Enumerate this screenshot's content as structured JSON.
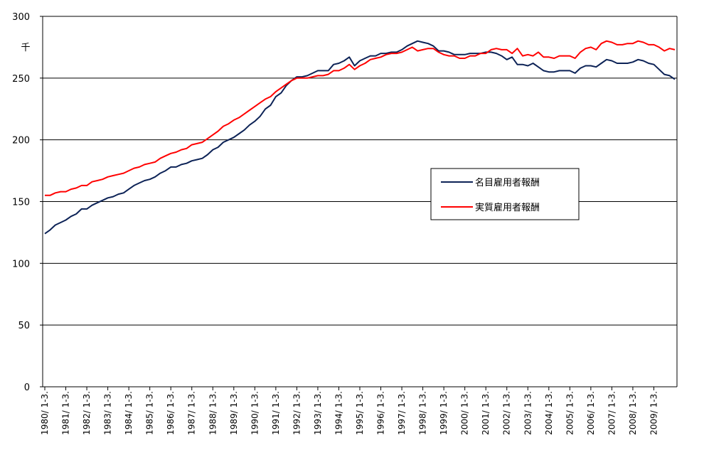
{
  "chart_data": {
    "type": "line",
    "unit_label": "千",
    "ylim": [
      0,
      300
    ],
    "yticks": [
      0,
      50,
      100,
      150,
      200,
      250,
      300
    ],
    "grid": true,
    "legend_position": "center-right",
    "x_tick_labels": [
      "1980/ 1-3.",
      "1981/ 1-3.",
      "1982/ 1-3.",
      "1983/ 1-3.",
      "1984/ 1-3.",
      "1985/ 1-3.",
      "1986/ 1-3.",
      "1987/ 1-3.",
      "1988/ 1-3.",
      "1989/ 1-3.",
      "1990/ 1-3.",
      "1991/ 1-3.",
      "1992/ 1-3.",
      "1993/ 1-3.",
      "1994/ 1-3.",
      "1995/ 1-3.",
      "1996/ 1-3.",
      "1997/ 1-3.",
      "1998/ 1-3.",
      "1999/ 1-3.",
      "2000/ 1-3.",
      "2001/ 1-3.",
      "2002/ 1-3.",
      "2003/ 1-3.",
      "2004/ 1-3.",
      "2005/ 1-3.",
      "2006/ 1-3.",
      "2007/ 1-3.",
      "2008/ 1-3.",
      "2009/ 1-3."
    ],
    "quarters_per_year": 4,
    "series": [
      {
        "name": "名目雇用者報酬",
        "color": "#0c2256",
        "values": [
          124,
          127,
          131,
          133,
          135,
          138,
          140,
          144,
          144,
          147,
          149,
          151,
          153,
          154,
          156,
          157,
          160,
          163,
          165,
          167,
          168,
          170,
          173,
          175,
          178,
          178,
          180,
          181,
          183,
          184,
          185,
          188,
          192,
          194,
          198,
          200,
          202,
          205,
          208,
          212,
          215,
          219,
          225,
          228,
          235,
          238,
          244,
          248,
          251,
          251,
          252,
          254,
          256,
          256,
          256,
          261,
          262,
          264,
          267,
          260,
          264,
          266,
          268,
          268,
          270,
          270,
          271,
          271,
          273,
          276,
          278,
          280,
          279,
          278,
          276,
          272,
          272,
          271,
          269,
          269,
          269,
          270,
          270,
          270,
          271,
          271,
          270,
          268,
          265,
          267,
          261,
          261,
          260,
          262,
          259,
          256,
          255,
          255,
          256,
          256,
          256,
          254,
          258,
          260,
          260,
          259,
          262,
          265,
          264,
          262,
          262,
          262,
          263,
          265,
          264,
          262,
          261,
          257,
          253,
          252,
          249
        ]
      },
      {
        "name": "実質雇用者報酬",
        "color": "#ff0000",
        "values": [
          155,
          155,
          157,
          158,
          158,
          160,
          161,
          163,
          163,
          166,
          167,
          168,
          170,
          171,
          172,
          173,
          175,
          177,
          178,
          180,
          181,
          182,
          185,
          187,
          189,
          190,
          192,
          193,
          196,
          197,
          198,
          201,
          204,
          207,
          211,
          213,
          216,
          218,
          221,
          224,
          227,
          230,
          233,
          235,
          239,
          242,
          245,
          248,
          250,
          250,
          250,
          251,
          252,
          252,
          253,
          256,
          256,
          258,
          261,
          257,
          260,
          262,
          265,
          266,
          267,
          269,
          270,
          270,
          271,
          273,
          275,
          272,
          273,
          274,
          274,
          271,
          269,
          268,
          268,
          266,
          266,
          268,
          268,
          270,
          270,
          273,
          274,
          273,
          273,
          270,
          274,
          268,
          269,
          268,
          271,
          267,
          267,
          266,
          268,
          268,
          268,
          266,
          271,
          274,
          275,
          273,
          278,
          280,
          279,
          277,
          277,
          278,
          278,
          280,
          279,
          277,
          277,
          275,
          272,
          274,
          273
        ]
      }
    ]
  }
}
